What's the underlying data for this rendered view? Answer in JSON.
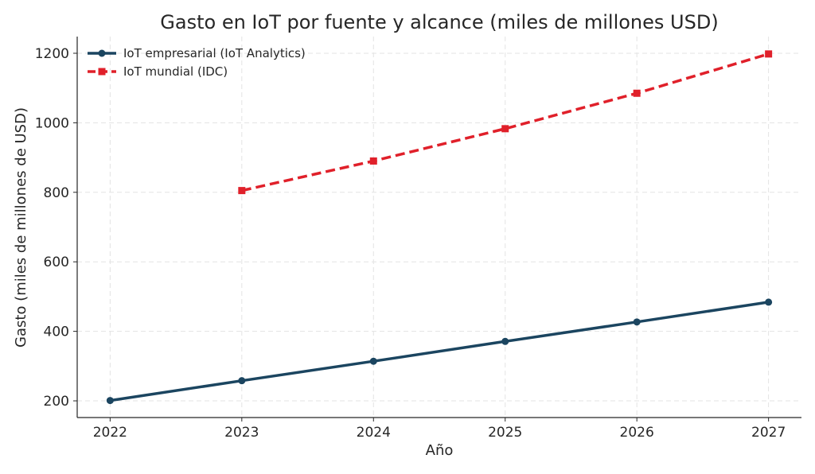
{
  "chart_data": {
    "type": "line",
    "title": "Gasto en IoT por fuente y alcance (miles de millones USD)",
    "xlabel": "Año",
    "ylabel": "Gasto (miles de millones de USD)",
    "x": [
      2022,
      2023,
      2024,
      2025,
      2026,
      2027
    ],
    "x_ticks": [
      "2022",
      "2023",
      "2024",
      "2025",
      "2026",
      "2027"
    ],
    "y_ticks": [
      200,
      400,
      600,
      800,
      1000,
      1200
    ],
    "xlim": [
      2021.75,
      2027.25
    ],
    "ylim": [
      152,
      1248
    ],
    "grid": true,
    "legend_position": "top-left",
    "series": [
      {
        "name": "IoT empresarial (IoT Analytics)",
        "color": "#1b4560",
        "style": "solid",
        "marker": "circle",
        "x": [
          2022,
          2023,
          2024,
          2025,
          2026,
          2027
        ],
        "values": [
          201,
          258,
          314,
          371,
          427,
          484
        ]
      },
      {
        "name": "IoT mundial (IDC)",
        "color": "#e0202a",
        "style": "dashed",
        "marker": "square",
        "x": [
          2023,
          2024,
          2025,
          2026,
          2027
        ],
        "values": [
          805,
          890,
          983,
          1085,
          1198
        ]
      }
    ]
  }
}
